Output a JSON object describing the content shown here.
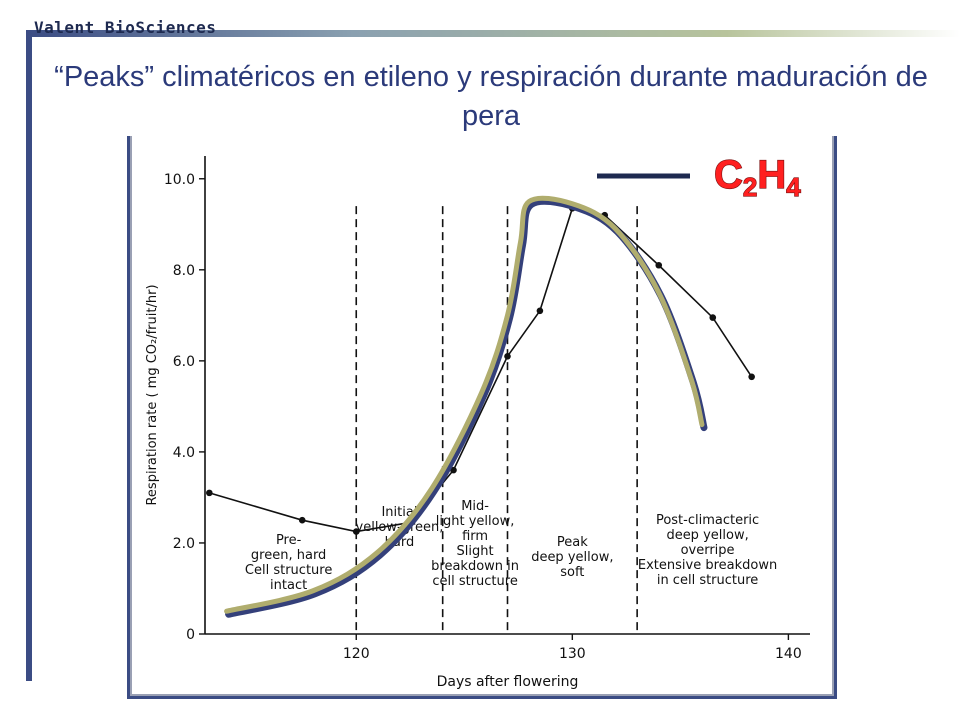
{
  "brand": "Valent BioSciences",
  "title": "“Peaks” climatéricos en etileno y respiración durante maduración de pera",
  "legend": {
    "line_label": "C",
    "sub1": "2",
    "mid": "H",
    "sub2": "4",
    "color": "#ff2020"
  },
  "colors": {
    "ethylene_outer": "#34407a",
    "ethylene_inner": "#b0ad6e",
    "respiration": "#111111",
    "frame": "#3b4c84"
  },
  "chart_data": {
    "type": "line",
    "xlabel": "Days after flowering",
    "ylabel": "Respiration rate ( mg CO₂/fruit/hr)",
    "xlim": [
      113,
      141
    ],
    "ylim": [
      0,
      10.5
    ],
    "x_ticks": [
      "120",
      "130",
      "140"
    ],
    "y_ticks": [
      "0",
      "2.0",
      "4.0",
      "6.0",
      "8.0",
      "10.0"
    ],
    "grid": false,
    "series": [
      {
        "name": "",
        "x": [
          113.2,
          117.5,
          120.0,
          122.5,
          124.5,
          127.0,
          128.5,
          130.0,
          131.5,
          134.0,
          136.5,
          138.3
        ],
        "y": [
          3.1,
          2.5,
          2.25,
          2.45,
          3.6,
          6.1,
          7.1,
          9.35,
          9.2,
          8.1,
          6.95,
          5.65
        ]
      },
      {
        "name": "C2H4",
        "x": [
          114.0,
          118.0,
          121.0,
          123.5,
          125.8,
          127.0,
          127.6,
          128.0,
          130.0,
          132.0,
          134.0,
          135.5,
          136.0
        ],
        "y": [
          0.5,
          0.95,
          1.8,
          3.2,
          5.3,
          7.0,
          8.6,
          9.5,
          9.45,
          8.9,
          7.5,
          5.6,
          4.6
        ]
      }
    ],
    "phases": [
      {
        "label_lines": [
          "Pre-",
          "green, hard",
          "Cell structure",
          "intact"
        ]
      },
      {
        "label_lines": [
          "Initial",
          "yellow-green,",
          "hard"
        ]
      },
      {
        "label_lines": [
          "Mid-",
          "light yellow,",
          "firm",
          "Slight",
          "breakdown in",
          "cell structure"
        ]
      },
      {
        "label_lines": [
          "Peak",
          "deep yellow,",
          "soft"
        ]
      },
      {
        "label_lines": [
          "Post-climacteric",
          "deep yellow,",
          "overripe",
          "Extensive breakdown",
          "in cell structure"
        ]
      }
    ],
    "phase_boundaries": [
      120.0,
      124.0,
      127.0,
      133.0
    ]
  }
}
